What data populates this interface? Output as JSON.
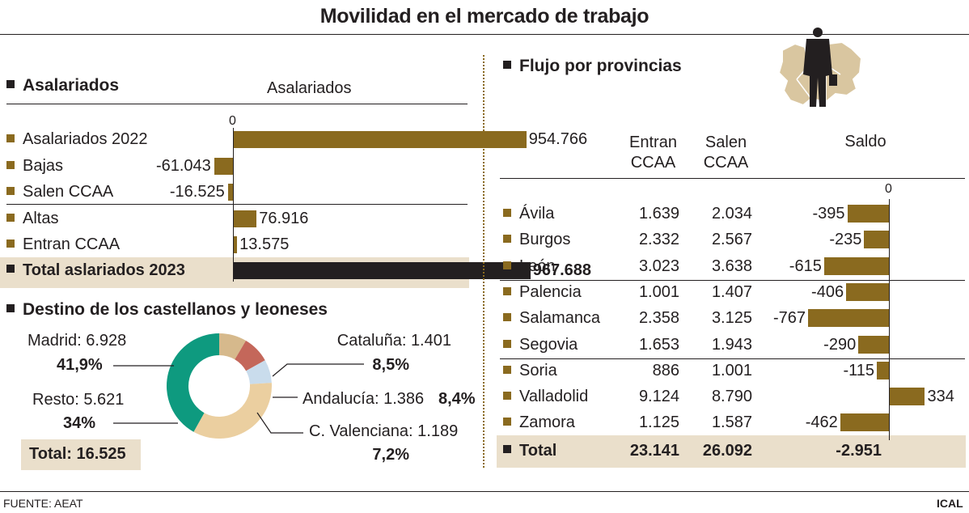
{
  "title": "Movilidad en el mercado de trabajo",
  "colors": {
    "bar": "#8a6a1f",
    "total_bar": "#231f20",
    "shade": "#eadfcb"
  },
  "asalariados": {
    "heading": "Asalariados",
    "chart_title": "Asalariados",
    "zero_label": "0",
    "rows": [
      {
        "label": "Asalariados 2022",
        "value": "954.766"
      },
      {
        "label": "Bajas",
        "value": "-61.043"
      },
      {
        "label": "Salen CCAA",
        "value": "-16.525"
      },
      {
        "label": "Altas",
        "value": "76.916"
      },
      {
        "label": "Entran CCAA",
        "value": "13.575"
      },
      {
        "label": "Total aslariados 2023",
        "value": "967.688"
      }
    ]
  },
  "destino": {
    "heading": "Destino de los castellanos y leoneses",
    "slices": [
      {
        "name": "Madrid",
        "label": "Madrid: 6.928",
        "pct": "41,9%"
      },
      {
        "name": "Cataluña",
        "label": "Cataluña: 1.401",
        "pct": "8,5%"
      },
      {
        "name": "Andalucía",
        "label": "Andalucía: 1.386",
        "pct": "8,4%"
      },
      {
        "name": "C. Valenciana",
        "label": "C. Valenciana: 1.189",
        "pct": "7,2%"
      },
      {
        "name": "Resto",
        "label": "Resto: 5.621",
        "pct": "34%"
      }
    ],
    "total": "Total: 16.525"
  },
  "flujo": {
    "heading": "Flujo por provincias",
    "col_entran": [
      "Entran",
      "CCAA"
    ],
    "col_salen": [
      "Salen",
      "CCAA"
    ],
    "col_saldo": "Saldo",
    "zero_label": "0",
    "rows": [
      {
        "prov": "Ávila",
        "entran": "1.639",
        "salen": "2.034",
        "saldo": "-395"
      },
      {
        "prov": "Burgos",
        "entran": "2.332",
        "salen": "2.567",
        "saldo": "-235"
      },
      {
        "prov": "León",
        "entran": "3.023",
        "salen": "3.638",
        "saldo": "-615"
      },
      {
        "prov": "Palencia",
        "entran": "1.001",
        "salen": "1.407",
        "saldo": "-406"
      },
      {
        "prov": "Salamanca",
        "entran": "2.358",
        "salen": "3.125",
        "saldo": "-767"
      },
      {
        "prov": "Segovia",
        "entran": "1.653",
        "salen": "1.943",
        "saldo": "-290"
      },
      {
        "prov": "Soria",
        "entran": "886",
        "salen": "1.001",
        "saldo": "-115"
      },
      {
        "prov": "Valladolid",
        "entran": "9.124",
        "salen": "8.790",
        "saldo": "334"
      },
      {
        "prov": "Zamora",
        "entran": "1.125",
        "salen": "1.587",
        "saldo": "-462"
      }
    ],
    "total": {
      "prov": "Total",
      "entran": "23.141",
      "salen": "26.092",
      "saldo": "-2.951"
    }
  },
  "footer": {
    "source": "FUENTE: AEAT",
    "brand": "ICAL"
  },
  "chart_data": [
    {
      "type": "bar",
      "title": "Asalariados",
      "categories": [
        "Asalariados 2022",
        "Bajas",
        "Salen CCAA",
        "Altas",
        "Entran CCAA",
        "Total aslariados 2023"
      ],
      "values": [
        954766,
        -61043,
        -16525,
        76916,
        13575,
        967688
      ]
    },
    {
      "type": "pie",
      "title": "Destino de los castellanos y leoneses",
      "categories": [
        "Madrid",
        "Cataluña",
        "Andalucía",
        "C. Valenciana",
        "Resto"
      ],
      "values": [
        6928,
        1401,
        1386,
        1189,
        5621
      ],
      "colors": [
        "#0e9a7f",
        "#d6b98c",
        "#c4675a",
        "#c9dcec",
        "#ebcfa0"
      ]
    },
    {
      "type": "bar",
      "title": "Saldo",
      "categories": [
        "Ávila",
        "Burgos",
        "León",
        "Palencia",
        "Salamanca",
        "Segovia",
        "Soria",
        "Valladolid",
        "Zamora"
      ],
      "values": [
        -395,
        -235,
        -615,
        -406,
        -767,
        -290,
        -115,
        334,
        -462
      ]
    }
  ]
}
